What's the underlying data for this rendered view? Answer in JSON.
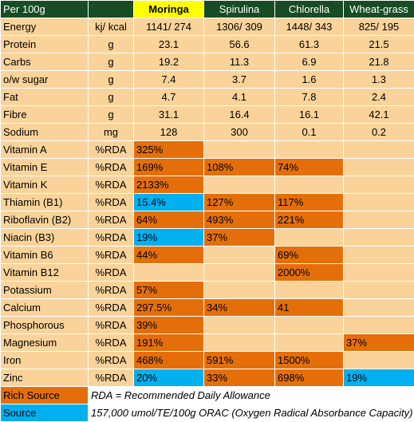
{
  "header": {
    "label": "Per 100g",
    "unit": "",
    "columns": [
      "Moringa",
      "Spirulina",
      "Chlorella",
      "Wheat-grass"
    ]
  },
  "rows": [
    {
      "name": "Energy",
      "unit": "kj/ kcal",
      "values": [
        "1141/ 274",
        "1306/ 309",
        "1448/ 343",
        "825/ 195"
      ],
      "styles": [
        "",
        "",
        "",
        ""
      ]
    },
    {
      "name": "Protein",
      "unit": "g",
      "values": [
        "23.1",
        "56.6",
        "61.3",
        "21.5"
      ],
      "styles": [
        "",
        "",
        "",
        ""
      ]
    },
    {
      "name": "Carbs",
      "unit": "g",
      "values": [
        "19.2",
        "11.3",
        "6.9",
        "21.8"
      ],
      "styles": [
        "",
        "",
        "",
        ""
      ]
    },
    {
      "name": "o/w sugar",
      "unit": "g",
      "values": [
        "7.4",
        "3.7",
        "1.6",
        "1.3"
      ],
      "styles": [
        "",
        "",
        "",
        ""
      ]
    },
    {
      "name": "Fat",
      "unit": "g",
      "values": [
        "4.7",
        "4.1",
        "7.8",
        "2.4"
      ],
      "styles": [
        "",
        "",
        "",
        ""
      ]
    },
    {
      "name": "Fibre",
      "unit": "g",
      "values": [
        "31.1",
        "16.4",
        "16.1",
        "42.1"
      ],
      "styles": [
        "",
        "",
        "",
        ""
      ]
    },
    {
      "name": "Sodium",
      "unit": "mg",
      "values": [
        "128",
        "300",
        "0.1",
        "0.2"
      ],
      "styles": [
        "",
        "",
        "",
        ""
      ]
    },
    {
      "name": "Vitamin A",
      "unit": "%RDA",
      "values": [
        "325%",
        "",
        "",
        ""
      ],
      "styles": [
        "orange",
        "",
        "",
        ""
      ]
    },
    {
      "name": "Vitamin E",
      "unit": "%RDA",
      "values": [
        "169%",
        "108%",
        "74%",
        ""
      ],
      "styles": [
        "orange",
        "orange",
        "orange",
        ""
      ]
    },
    {
      "name": "Vitamin K",
      "unit": "%RDA",
      "values": [
        "2133%",
        "",
        "",
        ""
      ],
      "styles": [
        "orange",
        "",
        "",
        ""
      ]
    },
    {
      "name": "Thiamin (B1)",
      "unit": "%RDA",
      "values": [
        "15.4%",
        "127%",
        "117%",
        ""
      ],
      "styles": [
        "blue",
        "orange",
        "orange",
        ""
      ]
    },
    {
      "name": "Riboflavin (B2)",
      "unit": "%RDA",
      "values": [
        "64%",
        "493%",
        "221%",
        ""
      ],
      "styles": [
        "orange",
        "orange",
        "orange",
        ""
      ]
    },
    {
      "name": "Niacin (B3)",
      "unit": "%RDA",
      "values": [
        "19%",
        "37%",
        "",
        ""
      ],
      "styles": [
        "blue",
        "orange",
        "",
        ""
      ]
    },
    {
      "name": "Vitamin B6",
      "unit": "%RDA",
      "values": [
        "44%",
        "",
        "69%",
        ""
      ],
      "styles": [
        "orange",
        "",
        "orange",
        ""
      ]
    },
    {
      "name": "Vitamin B12",
      "unit": "%RDA",
      "values": [
        "",
        "",
        "2000%",
        ""
      ],
      "styles": [
        "",
        "",
        "orange",
        ""
      ]
    },
    {
      "name": "Potassium",
      "unit": "%RDA",
      "values": [
        "57%",
        "",
        "",
        ""
      ],
      "styles": [
        "orange",
        "",
        "",
        ""
      ]
    },
    {
      "name": "Calcium",
      "unit": "%RDA",
      "values": [
        "297.5%",
        "34%",
        "41",
        ""
      ],
      "styles": [
        "orange",
        "orange",
        "orange",
        ""
      ]
    },
    {
      "name": "Phosphorous",
      "unit": "%RDA",
      "values": [
        "39%",
        "",
        "",
        ""
      ],
      "styles": [
        "orange",
        "",
        "",
        ""
      ]
    },
    {
      "name": "Magnesium",
      "unit": "%RDA",
      "values": [
        "191%",
        "",
        "",
        "37%"
      ],
      "styles": [
        "orange",
        "",
        "",
        "orange"
      ]
    },
    {
      "name": "Iron",
      "unit": "%RDA",
      "values": [
        "468%",
        "591%",
        "1500%",
        ""
      ],
      "styles": [
        "orange",
        "orange",
        "orange",
        ""
      ]
    },
    {
      "name": "Zinc",
      "unit": "%RDA",
      "values": [
        "20%",
        "33%",
        "698%",
        "19%"
      ],
      "styles": [
        "blue",
        "orange",
        "orange",
        "blue"
      ]
    }
  ],
  "legend": [
    {
      "label": "Rich Source",
      "note": "RDA = Recommended Daily Allowance",
      "color": "#e46f0a"
    },
    {
      "label": "Source",
      "note": "157,000 umol/TE/100g ORAC (Oxygen Radical Absorbance Capacity)",
      "color": "#00b0f0"
    }
  ],
  "colors": {
    "header_bg": "#174c24",
    "highlight": "#ffff00",
    "cell_bg": "#fad39a",
    "rich_source": "#e46f0a",
    "source": "#00b0f0"
  }
}
